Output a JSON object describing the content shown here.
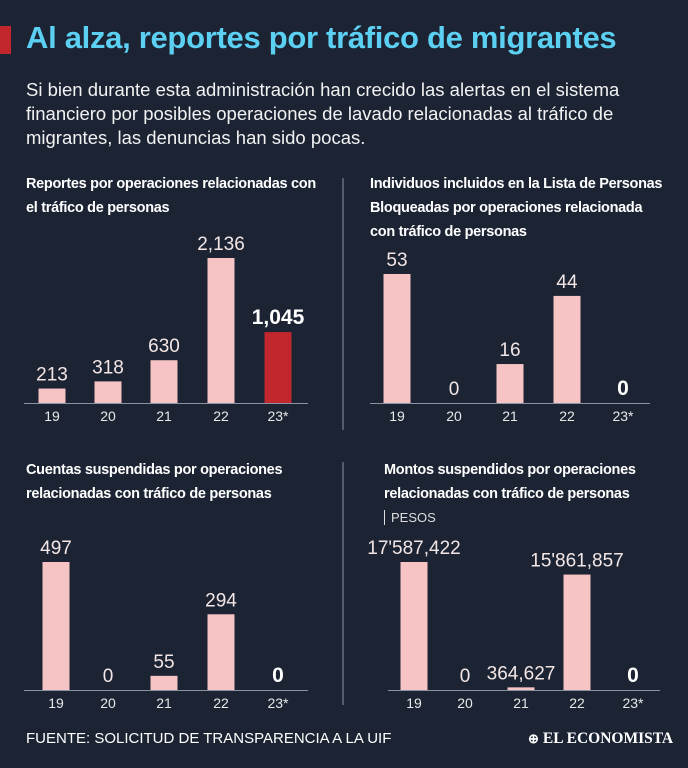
{
  "title": "Al alza, reportes por tráfico de migrantes",
  "subtitle": "Si bien durante esta administración han crecido las alertas en el sistema financiero por posibles operaciones de lavado relacionadas al tráfico de migrantes, las denuncias han sido pocas.",
  "source": "FUENTE: SOLICITUD DE TRANSPARENCIA A LA UIF",
  "brand": "EL ECONOMISTA",
  "chart_data": [
    {
      "type": "bar",
      "title": "Reportes por operaciones relacionadas con el tráfico de personas",
      "categories": [
        "19",
        "20",
        "21",
        "22",
        "23*"
      ],
      "values": [
        213,
        318,
        630,
        2136,
        1045
      ],
      "value_labels": [
        "213",
        "318",
        "630",
        "2,136",
        "1,045"
      ],
      "colors": [
        "#f6c4c4",
        "#f6c4c4",
        "#f6c4c4",
        "#f6c4c4",
        "#c1272d"
      ]
    },
    {
      "type": "bar",
      "title": "Individuos incluidos en la Lista de Personas Bloqueadas por operaciones relacionada con tráfico de personas",
      "categories": [
        "19",
        "20",
        "21",
        "22",
        "23*"
      ],
      "values": [
        53,
        0,
        16,
        44,
        0
      ],
      "color": "#f6c4c4"
    },
    {
      "type": "bar",
      "title": "Cuentas suspendidas por operaciones relacionadas con tráfico de personas",
      "categories": [
        "19",
        "20",
        "21",
        "22",
        "23*"
      ],
      "values": [
        497,
        0,
        55,
        294,
        0
      ],
      "color": "#f6c4c4"
    },
    {
      "type": "bar",
      "title": "Montos suspendidos por operaciones relacionadas con tráfico de personas",
      "subtitle": "PESOS",
      "categories": [
        "19",
        "20",
        "21",
        "22",
        "23*"
      ],
      "values": [
        17587422,
        0,
        364627,
        15861857,
        0
      ],
      "value_labels": [
        "17'587,422",
        "0",
        "364,627",
        "15'861,857",
        "0"
      ],
      "color": "#f6c4c4"
    }
  ]
}
